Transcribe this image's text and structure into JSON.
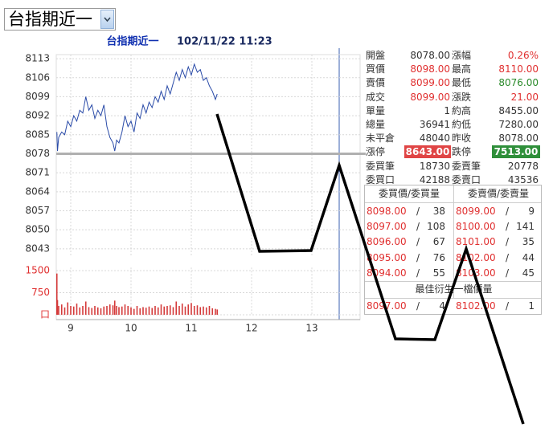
{
  "selector": {
    "label": "台指期近一"
  },
  "chart_data": [
    {
      "type": "line",
      "title": "台指期近一",
      "subtitle": "102/11/22 11:23",
      "x": [
        8.77,
        8.78,
        8.8,
        8.85,
        8.9,
        8.95,
        9.0,
        9.05,
        9.1,
        9.15,
        9.2,
        9.25,
        9.3,
        9.35,
        9.4,
        9.45,
        9.5,
        9.55,
        9.6,
        9.65,
        9.7,
        9.73,
        9.76,
        9.8,
        9.85,
        9.9,
        9.95,
        10.0,
        10.05,
        10.1,
        10.15,
        10.2,
        10.25,
        10.3,
        10.35,
        10.4,
        10.45,
        10.5,
        10.55,
        10.6,
        10.65,
        10.7,
        10.75,
        10.8,
        10.85,
        10.9,
        10.95,
        11.0,
        11.05,
        11.1,
        11.15,
        11.2,
        11.25,
        11.3,
        11.35,
        11.4,
        11.43
      ],
      "series": [
        {
          "color": "#2a4ba8",
          "values": [
            8086,
            8079,
            8084,
            8086,
            8085,
            8090,
            8088,
            8092,
            8090,
            8094,
            8093,
            8099,
            8094,
            8096,
            8091,
            8094,
            8092,
            8096,
            8088,
            8084,
            8082,
            8079,
            8083,
            8082,
            8086,
            8092,
            8088,
            8090,
            8086,
            8093,
            8091,
            8096,
            8093,
            8097,
            8095,
            8099,
            8097,
            8101,
            8098,
            8103,
            8100,
            8104,
            8108,
            8105,
            8109,
            8106,
            8110,
            8107,
            8111,
            8108,
            8109,
            8105,
            8106,
            8103,
            8101,
            8098,
            8100
          ]
        }
      ],
      "xlim": [
        8.76,
        13.8
      ],
      "xticks": [
        9,
        10,
        11,
        12,
        13
      ],
      "ylim": [
        8040,
        8114.5
      ],
      "yticks": [
        8043,
        8050,
        8057,
        8064,
        8071,
        8078,
        8085,
        8092,
        8099,
        8106,
        8113
      ],
      "reference_line": 8078,
      "grid": true
    },
    {
      "type": "bar",
      "color": "#d43a3a",
      "x": [
        8.77,
        8.78,
        8.8,
        8.85,
        8.9,
        8.95,
        9.0,
        9.05,
        9.1,
        9.15,
        9.2,
        9.25,
        9.3,
        9.35,
        9.4,
        9.45,
        9.5,
        9.55,
        9.6,
        9.65,
        9.7,
        9.73,
        9.76,
        9.8,
        9.85,
        9.9,
        9.95,
        10.0,
        10.05,
        10.1,
        10.15,
        10.2,
        10.25,
        10.3,
        10.35,
        10.4,
        10.45,
        10.5,
        10.55,
        10.6,
        10.65,
        10.7,
        10.75,
        10.8,
        10.85,
        10.9,
        10.95,
        11.0,
        11.05,
        11.1,
        11.15,
        11.2,
        11.25,
        11.3,
        11.35,
        11.4,
        11.43
      ],
      "values": [
        1400,
        500,
        300,
        350,
        250,
        420,
        300,
        280,
        380,
        250,
        300,
        450,
        260,
        230,
        300,
        250,
        220,
        280,
        300,
        350,
        320,
        480,
        300,
        260,
        280,
        350,
        300,
        250,
        200,
        300,
        220,
        260,
        240,
        280,
        230,
        300,
        250,
        350,
        280,
        300,
        320,
        260,
        450,
        300,
        380,
        280,
        350,
        400,
        300,
        320,
        260,
        280,
        250,
        300,
        220,
        200,
        180
      ],
      "xlim": [
        8.76,
        13.8
      ],
      "xticks": [
        9,
        10,
        11,
        12,
        13
      ],
      "ylim": [
        0,
        1600
      ],
      "yticks": [
        {
          "value": 0,
          "label": "口"
        },
        750,
        1500
      ],
      "grid": true
    }
  ],
  "quote": {
    "rows": [
      [
        "開盤",
        "8078.00",
        "漲幅",
        "0.26%"
      ],
      [
        "買價",
        "8098.00",
        "最高",
        "8110.00"
      ],
      [
        "賣價",
        "8099.00",
        "最低",
        "8076.00"
      ],
      [
        "成交",
        "8099.00",
        "漲跌",
        "21.00"
      ],
      [
        "單量",
        "1",
        "約高",
        "8455.00"
      ],
      [
        "總量",
        "36941",
        "約低",
        "7280.00"
      ],
      [
        "未平倉",
        "48040",
        "昨收",
        "8078.00"
      ],
      [
        "漲停",
        "8643.00",
        "跌停",
        "7513.00"
      ],
      [
        "委買筆",
        "18730",
        "委賣筆",
        "20778"
      ],
      [
        "委買口",
        "42188",
        "委賣口",
        "43536"
      ]
    ]
  },
  "order_book": {
    "bid_header": "委買價/委買量",
    "ask_header": "委賣價/委賣量",
    "separator": "/",
    "bids": [
      [
        "8098.00",
        "38"
      ],
      [
        "8097.00",
        "108"
      ],
      [
        "8096.00",
        "67"
      ],
      [
        "8095.00",
        "76"
      ],
      [
        "8094.00",
        "55"
      ]
    ],
    "asks": [
      [
        "8099.00",
        "9"
      ],
      [
        "8100.00",
        "141"
      ],
      [
        "8101.00",
        "35"
      ],
      [
        "8102.00",
        "44"
      ],
      [
        "8103.00",
        "45"
      ]
    ],
    "best_title": "最佳衍生一檔價量",
    "best_bid": [
      "8097.00",
      "4"
    ],
    "best_ask": [
      "8102.00",
      "1"
    ]
  }
}
